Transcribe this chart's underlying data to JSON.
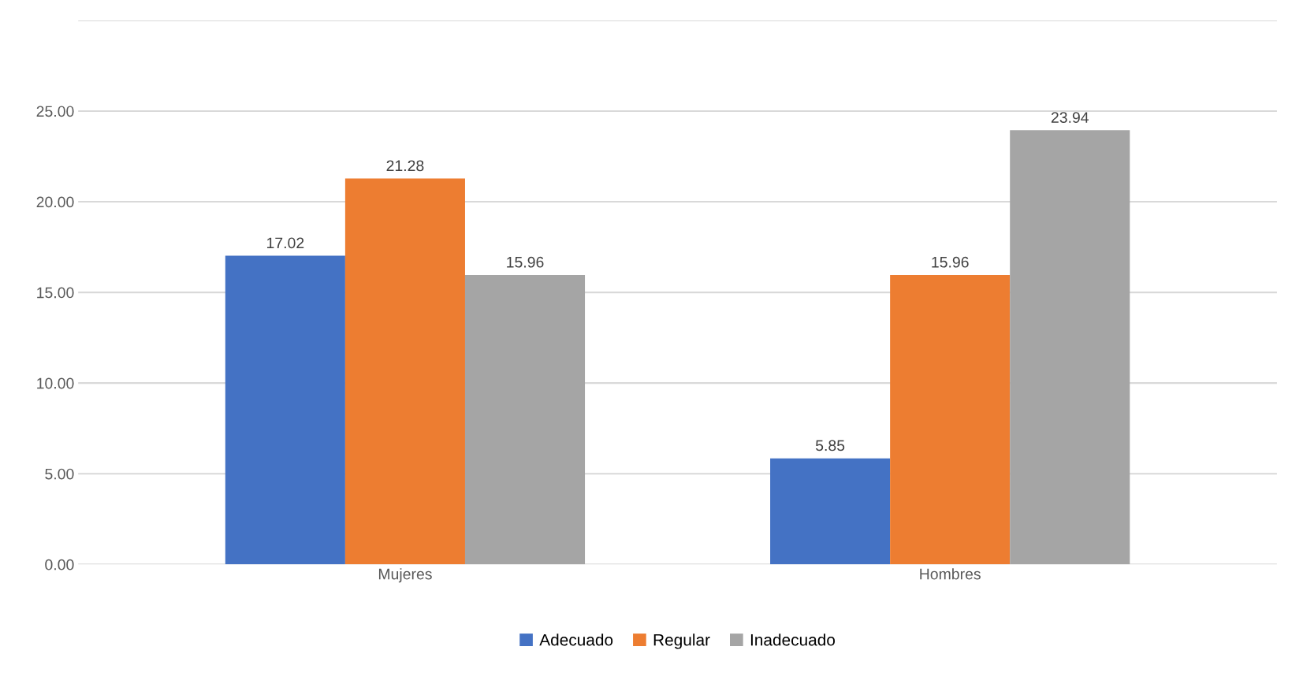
{
  "chart_data": {
    "type": "bar",
    "categories": [
      "Mujeres",
      "Hombres"
    ],
    "series": [
      {
        "name": "Adecuado",
        "color": "#4472c4",
        "values": [
          17.02,
          5.85
        ]
      },
      {
        "name": "Regular",
        "color": "#ed7d31",
        "values": [
          21.28,
          15.96
        ]
      },
      {
        "name": "Inadecuado",
        "color": "#a5a5a5",
        "values": [
          15.96,
          23.94
        ]
      }
    ],
    "ylim": [
      0,
      30
    ],
    "yticks": [
      {
        "value": 0,
        "label": "0.00"
      },
      {
        "value": 5,
        "label": "5.00"
      },
      {
        "value": 10,
        "label": "10.00"
      },
      {
        "value": 15,
        "label": "15.00"
      },
      {
        "value": 20,
        "label": "20.00"
      },
      {
        "value": 25,
        "label": "25.00"
      },
      {
        "value": 30,
        "label": null
      }
    ],
    "grid": "y",
    "legend": "bottom",
    "data_labels": true
  }
}
